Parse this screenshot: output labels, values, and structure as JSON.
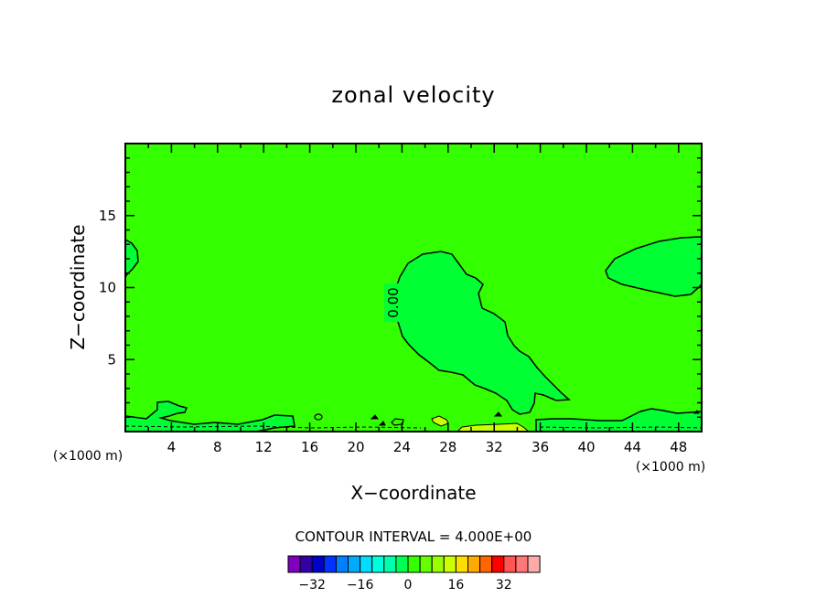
{
  "chart_data": {
    "type": "heatmap",
    "title": "zonal velocity",
    "xlabel": "X−coordinate",
    "ylabel": "Z−coordinate",
    "x_unit": "(×1000 m)",
    "z_unit": "(×1000 m)",
    "xlim": [
      0,
      50
    ],
    "ylim": [
      0,
      20
    ],
    "x_ticks": [
      4,
      8,
      12,
      16,
      20,
      24,
      28,
      32,
      36,
      40,
      44,
      48
    ],
    "y_ticks": [
      5,
      10,
      15
    ],
    "contour_label": "0.00",
    "contour_interval": "CONTOUR INTERVAL = 4.000E+00",
    "colorbar": {
      "levels": [
        -36,
        -32,
        -28,
        -24,
        -20,
        -16,
        -12,
        -8,
        -4,
        0,
        4,
        8,
        12,
        16,
        20,
        24,
        28,
        32,
        36
      ],
      "ticks": [
        -32,
        -16,
        0,
        16,
        32
      ],
      "tick_labels": [
        "−32",
        "−16",
        "0",
        "16",
        "32"
      ],
      "colors": [
        "#7f00bf",
        "#3300a6",
        "#0000cc",
        "#0033ff",
        "#0080ff",
        "#00aaff",
        "#00ddff",
        "#00ffdd",
        "#00ffaa",
        "#00ff55",
        "#33ff00",
        "#66ff00",
        "#99ff00",
        "#ccff00",
        "#ffdd00",
        "#ffaa00",
        "#ff6600",
        "#ff0000",
        "#ff5555",
        "#ff7777",
        "#ffaaaa"
      ]
    },
    "fill_colors": {
      "background_band": "#33ff00",
      "negative_band": "#00ff33",
      "positive_band": "#ccff00"
    }
  }
}
